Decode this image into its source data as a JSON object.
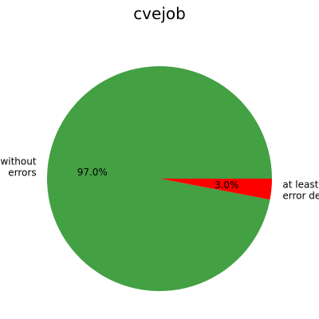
{
  "chart_data": {
    "type": "pie",
    "title": "cvejob",
    "slices": [
      {
        "label_lines": [
          "without",
          "errors"
        ],
        "value": 97.0,
        "pct_label": "97.0%",
        "color": "#43a043"
      },
      {
        "label_lines": [
          "at least one",
          "error detected"
        ],
        "value": 3.0,
        "pct_label": "3.0%",
        "color": "#ff0000"
      }
    ]
  }
}
